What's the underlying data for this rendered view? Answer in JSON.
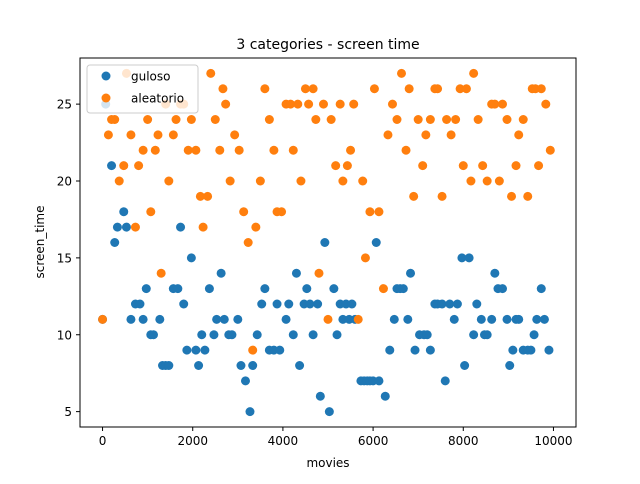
{
  "chart_data": {
    "type": "scatter",
    "title": "3 categories - screen time",
    "xlabel": "movies",
    "ylabel": "screen_time",
    "xlim": [
      -500,
      10500
    ],
    "ylim": [
      4,
      28
    ],
    "xticks": [
      0,
      2000,
      4000,
      6000,
      8000,
      10000
    ],
    "yticks": [
      5,
      10,
      15,
      20,
      25
    ],
    "legend_position": "top-left",
    "grid": false,
    "series": [
      {
        "name": "guloso",
        "color": "#1f77b4",
        "points": [
          [
            0,
            11
          ],
          [
            70,
            25
          ],
          [
            200,
            21
          ],
          [
            270,
            16
          ],
          [
            330,
            17
          ],
          [
            470,
            18
          ],
          [
            530,
            17
          ],
          [
            630,
            11
          ],
          [
            730,
            12
          ],
          [
            830,
            12
          ],
          [
            900,
            11
          ],
          [
            970,
            13
          ],
          [
            1070,
            10
          ],
          [
            1130,
            10
          ],
          [
            1270,
            11
          ],
          [
            1330,
            8
          ],
          [
            1400,
            8
          ],
          [
            1470,
            8
          ],
          [
            1570,
            13
          ],
          [
            1670,
            13
          ],
          [
            1730,
            17
          ],
          [
            1800,
            12
          ],
          [
            1870,
            9
          ],
          [
            1970,
            15
          ],
          [
            2070,
            9
          ],
          [
            2130,
            8
          ],
          [
            2200,
            10
          ],
          [
            2270,
            9
          ],
          [
            2370,
            13
          ],
          [
            2470,
            10
          ],
          [
            2530,
            11
          ],
          [
            2630,
            14
          ],
          [
            2700,
            11
          ],
          [
            2800,
            10
          ],
          [
            2870,
            10
          ],
          [
            3000,
            11
          ],
          [
            3070,
            8
          ],
          [
            3170,
            7
          ],
          [
            3270,
            5
          ],
          [
            3330,
            8
          ],
          [
            3430,
            10
          ],
          [
            3530,
            12
          ],
          [
            3600,
            13
          ],
          [
            3700,
            9
          ],
          [
            3800,
            9
          ],
          [
            3870,
            12
          ],
          [
            3930,
            9
          ],
          [
            4070,
            11
          ],
          [
            4130,
            12
          ],
          [
            4230,
            10
          ],
          [
            4300,
            14
          ],
          [
            4370,
            8
          ],
          [
            4470,
            12
          ],
          [
            4530,
            13
          ],
          [
            4600,
            12
          ],
          [
            4670,
            10
          ],
          [
            4770,
            12
          ],
          [
            4830,
            6
          ],
          [
            4930,
            16
          ],
          [
            5030,
            5
          ],
          [
            5130,
            13
          ],
          [
            5200,
            10
          ],
          [
            5270,
            12
          ],
          [
            5330,
            11
          ],
          [
            5400,
            12
          ],
          [
            5470,
            11
          ],
          [
            5530,
            12
          ],
          [
            5600,
            11
          ],
          [
            5730,
            7
          ],
          [
            5800,
            7
          ],
          [
            5870,
            7
          ],
          [
            5930,
            7
          ],
          [
            6000,
            7
          ],
          [
            6070,
            16
          ],
          [
            6130,
            7
          ],
          [
            6270,
            6
          ],
          [
            6370,
            9
          ],
          [
            6470,
            11
          ],
          [
            6530,
            13
          ],
          [
            6600,
            13
          ],
          [
            6670,
            13
          ],
          [
            6770,
            11
          ],
          [
            6830,
            14
          ],
          [
            6930,
            9
          ],
          [
            7030,
            10
          ],
          [
            7130,
            10
          ],
          [
            7200,
            10
          ],
          [
            7270,
            9
          ],
          [
            7370,
            12
          ],
          [
            7430,
            12
          ],
          [
            7530,
            12
          ],
          [
            7600,
            7
          ],
          [
            7700,
            12
          ],
          [
            7800,
            11
          ],
          [
            7870,
            12
          ],
          [
            7970,
            15
          ],
          [
            8030,
            8
          ],
          [
            8130,
            15
          ],
          [
            8230,
            10
          ],
          [
            8300,
            12
          ],
          [
            8400,
            11
          ],
          [
            8470,
            10
          ],
          [
            8530,
            10
          ],
          [
            8630,
            11
          ],
          [
            8700,
            14
          ],
          [
            8770,
            13
          ],
          [
            8870,
            13
          ],
          [
            8970,
            11
          ],
          [
            9030,
            8
          ],
          [
            9100,
            9
          ],
          [
            9170,
            11
          ],
          [
            9230,
            11
          ],
          [
            9330,
            9
          ],
          [
            9430,
            9
          ],
          [
            9500,
            9
          ],
          [
            9570,
            10
          ],
          [
            9630,
            11
          ],
          [
            9730,
            13
          ],
          [
            9800,
            11
          ],
          [
            9900,
            9
          ]
        ]
      },
      {
        "name": "aleatorio",
        "color": "#ff7f0e",
        "points": [
          [
            0,
            11
          ],
          [
            130,
            23
          ],
          [
            200,
            24
          ],
          [
            270,
            24
          ],
          [
            370,
            20
          ],
          [
            470,
            21
          ],
          [
            530,
            27
          ],
          [
            630,
            23
          ],
          [
            730,
            17
          ],
          [
            800,
            21
          ],
          [
            900,
            22
          ],
          [
            1000,
            24
          ],
          [
            1070,
            18
          ],
          [
            1170,
            22
          ],
          [
            1230,
            23
          ],
          [
            1300,
            14
          ],
          [
            1400,
            25
          ],
          [
            1470,
            20
          ],
          [
            1570,
            23
          ],
          [
            1630,
            24
          ],
          [
            1730,
            25
          ],
          [
            1800,
            25
          ],
          [
            1900,
            22
          ],
          [
            1970,
            24
          ],
          [
            2070,
            22
          ],
          [
            2170,
            19
          ],
          [
            2230,
            17
          ],
          [
            2330,
            19
          ],
          [
            2400,
            27
          ],
          [
            2500,
            24
          ],
          [
            2600,
            22
          ],
          [
            2670,
            26
          ],
          [
            2730,
            25
          ],
          [
            2830,
            20
          ],
          [
            2930,
            23
          ],
          [
            3030,
            22
          ],
          [
            3130,
            18
          ],
          [
            3230,
            16
          ],
          [
            3330,
            9
          ],
          [
            3400,
            17
          ],
          [
            3500,
            20
          ],
          [
            3600,
            26
          ],
          [
            3700,
            24
          ],
          [
            3800,
            22
          ],
          [
            3870,
            18
          ],
          [
            3970,
            18
          ],
          [
            4070,
            25
          ],
          [
            4170,
            25
          ],
          [
            4230,
            22
          ],
          [
            4330,
            25
          ],
          [
            4400,
            20
          ],
          [
            4500,
            26
          ],
          [
            4570,
            25
          ],
          [
            4670,
            26
          ],
          [
            4730,
            24
          ],
          [
            4800,
            14
          ],
          [
            4900,
            25
          ],
          [
            5000,
            11
          ],
          [
            5070,
            24
          ],
          [
            5170,
            21
          ],
          [
            5270,
            25
          ],
          [
            5330,
            20
          ],
          [
            5430,
            21
          ],
          [
            5500,
            22
          ],
          [
            5570,
            25
          ],
          [
            5670,
            11
          ],
          [
            5770,
            20
          ],
          [
            5830,
            15
          ],
          [
            5930,
            18
          ],
          [
            6030,
            26
          ],
          [
            6130,
            18
          ],
          [
            6230,
            13
          ],
          [
            6330,
            23
          ],
          [
            6430,
            25
          ],
          [
            6530,
            24
          ],
          [
            6630,
            27
          ],
          [
            6730,
            22
          ],
          [
            6800,
            26
          ],
          [
            6900,
            19
          ],
          [
            7000,
            24
          ],
          [
            7100,
            21
          ],
          [
            7170,
            23
          ],
          [
            7270,
            24
          ],
          [
            7370,
            26
          ],
          [
            7430,
            26
          ],
          [
            7530,
            19
          ],
          [
            7630,
            24
          ],
          [
            7730,
            23
          ],
          [
            7830,
            24
          ],
          [
            7930,
            26
          ],
          [
            8000,
            21
          ],
          [
            8070,
            26
          ],
          [
            8170,
            20
          ],
          [
            8230,
            27
          ],
          [
            8330,
            24
          ],
          [
            8430,
            21
          ],
          [
            8530,
            20
          ],
          [
            8630,
            25
          ],
          [
            8700,
            25
          ],
          [
            8800,
            20
          ],
          [
            8870,
            25
          ],
          [
            8970,
            24
          ],
          [
            9070,
            19
          ],
          [
            9170,
            21
          ],
          [
            9230,
            23
          ],
          [
            9330,
            24
          ],
          [
            9430,
            19
          ],
          [
            9530,
            26
          ],
          [
            9600,
            26
          ],
          [
            9670,
            21
          ],
          [
            9730,
            26
          ],
          [
            9830,
            25
          ],
          [
            9930,
            22
          ]
        ]
      }
    ]
  }
}
